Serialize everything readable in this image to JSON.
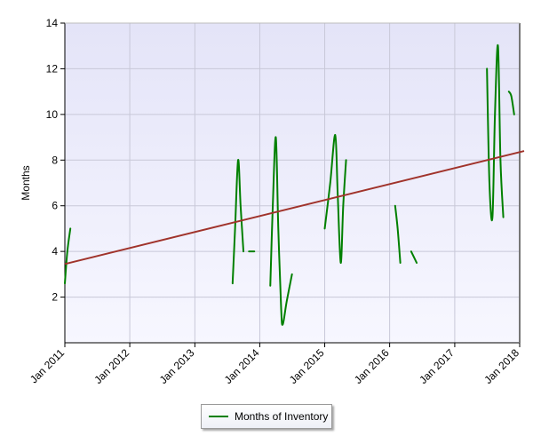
{
  "chart_data": {
    "type": "line",
    "title": "",
    "xlabel": "",
    "ylabel": "Months",
    "ylim": [
      0,
      14
    ],
    "yticks": [
      2,
      4,
      6,
      8,
      10,
      12,
      14
    ],
    "xlim": [
      "2011-01-01",
      "2018-01-01"
    ],
    "xticks": [
      {
        "date": "2011-01-01",
        "label": "Jan 2011"
      },
      {
        "date": "2012-01-01",
        "label": "Jan 2012"
      },
      {
        "date": "2013-01-01",
        "label": "Jan 2013"
      },
      {
        "date": "2014-01-01",
        "label": "Jan 2014"
      },
      {
        "date": "2015-01-01",
        "label": "Jan 2015"
      },
      {
        "date": "2016-01-01",
        "label": "Jan 2016"
      },
      {
        "date": "2017-01-01",
        "label": "Jan 2017"
      },
      {
        "date": "2018-01-01",
        "label": "Jan 2018"
      }
    ],
    "grid": true,
    "legend_position": "bottom-center",
    "colors": {
      "series": "#008000",
      "trend": "#a0332b",
      "plot_bg": "#e8e8fa",
      "grid": "#c8c8d8"
    },
    "series": [
      {
        "name": "Months of Inventory",
        "segments": [
          [
            [
              "2011-01-01",
              2.6
            ],
            [
              "2011-01-15",
              4.0
            ],
            [
              "2011-02-01",
              5.0
            ]
          ],
          [
            [
              "2013-08-01",
              2.6
            ],
            [
              "2013-08-15",
              5.0
            ],
            [
              "2013-09-01",
              8.0
            ],
            [
              "2013-09-15",
              6.0
            ],
            [
              "2013-10-01",
              4.0
            ]
          ],
          [
            [
              "2013-11-01",
              4.0
            ],
            [
              "2013-12-01",
              4.0
            ]
          ],
          [
            [
              "2014-03-01",
              2.5
            ],
            [
              "2014-03-15",
              6.0
            ],
            [
              "2014-04-01",
              9.0
            ],
            [
              "2014-04-15",
              5.0
            ],
            [
              "2014-05-01",
              1.5
            ],
            [
              "2014-05-10",
              0.8
            ],
            [
              "2014-06-01",
              1.8
            ],
            [
              "2014-07-01",
              3.0
            ]
          ],
          [
            [
              "2015-01-01",
              5.0
            ],
            [
              "2015-02-01",
              7.0
            ],
            [
              "2015-03-01",
              9.1
            ],
            [
              "2015-03-15",
              6.5
            ],
            [
              "2015-04-01",
              3.5
            ],
            [
              "2015-04-15",
              6.0
            ],
            [
              "2015-05-01",
              8.0
            ]
          ],
          [
            [
              "2016-02-01",
              6.0
            ],
            [
              "2016-02-15",
              5.0
            ],
            [
              "2016-03-01",
              3.5
            ]
          ],
          [
            [
              "2016-05-01",
              4.0
            ],
            [
              "2016-06-01",
              3.5
            ]
          ],
          [
            [
              "2017-07-01",
              12.0
            ],
            [
              "2017-07-15",
              7.0
            ],
            [
              "2017-08-01",
              5.5
            ],
            [
              "2017-08-15",
              10.0
            ],
            [
              "2017-09-01",
              13.0
            ],
            [
              "2017-09-15",
              8.0
            ],
            [
              "2017-10-01",
              5.5
            ]
          ],
          [
            [
              "2017-11-01",
              11.0
            ],
            [
              "2017-11-15",
              10.8
            ],
            [
              "2017-12-01",
              10.0
            ]
          ]
        ]
      }
    ],
    "trendline": {
      "points": [
        [
          "2011-01-01",
          3.45
        ],
        [
          "2018-01-01",
          8.35
        ]
      ]
    }
  },
  "legend": {
    "label": "Months of Inventory"
  }
}
